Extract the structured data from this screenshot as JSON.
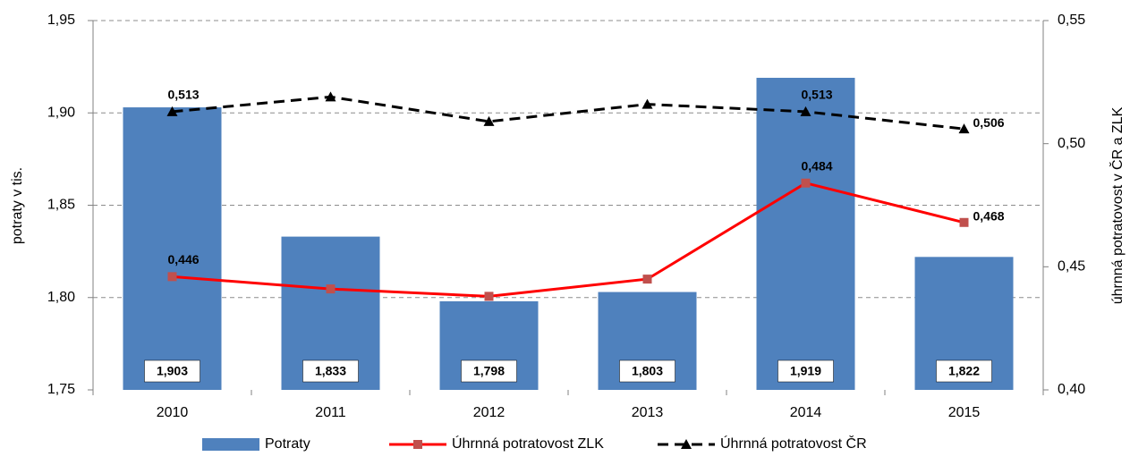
{
  "chart_data": {
    "type": "bar-line",
    "y_label": "potraty v tis.",
    "y2_label": "úhrnná potratovost v ČR a ZLK",
    "categories": [
      "2010",
      "2011",
      "2012",
      "2013",
      "2014",
      "2015"
    ],
    "series": [
      {
        "name": "Potraty",
        "type": "bar",
        "color": "#4f81bd",
        "values": [
          1.903,
          1.833,
          1.798,
          1.803,
          1.919,
          1.822
        ],
        "value_labels": [
          "1,903",
          "1,833",
          "1,798",
          "1,803",
          "1,919",
          "1,822"
        ]
      },
      {
        "name": "Úhrnná potratovost ZLK",
        "type": "line",
        "axis": "y2",
        "color": "#ff0000",
        "marker_color": "#c0504d",
        "marker": "square",
        "dash": false,
        "values": [
          0.446,
          0.441,
          0.438,
          0.445,
          0.484,
          0.468
        ],
        "value_labels": [
          "0,446",
          null,
          null,
          null,
          "0,484",
          "0,468"
        ]
      },
      {
        "name": "Úhrnná potratovost ČR",
        "type": "line",
        "axis": "y2",
        "color": "#000000",
        "marker_color": "#000000",
        "marker": "triangle",
        "dash": true,
        "values": [
          0.513,
          0.519,
          0.509,
          0.516,
          0.513,
          0.506
        ],
        "value_labels": [
          "0,513",
          null,
          null,
          null,
          "0,513",
          "0,506"
        ]
      }
    ],
    "ylim": [
      1.75,
      1.95
    ],
    "yticks": [
      {
        "value": 1.75,
        "label": "1,75"
      },
      {
        "value": 1.8,
        "label": "1,80"
      },
      {
        "value": 1.85,
        "label": "1,85"
      },
      {
        "value": 1.9,
        "label": "1,90"
      },
      {
        "value": 1.95,
        "label": "1,95"
      }
    ],
    "y2lim": [
      0.4,
      0.55
    ],
    "y2ticks": [
      {
        "value": 0.4,
        "label": "0,40"
      },
      {
        "value": 0.45,
        "label": "0,45"
      },
      {
        "value": 0.5,
        "label": "0,50"
      },
      {
        "value": 0.55,
        "label": "0,55"
      }
    ],
    "grid": true,
    "legend": "bottom"
  }
}
